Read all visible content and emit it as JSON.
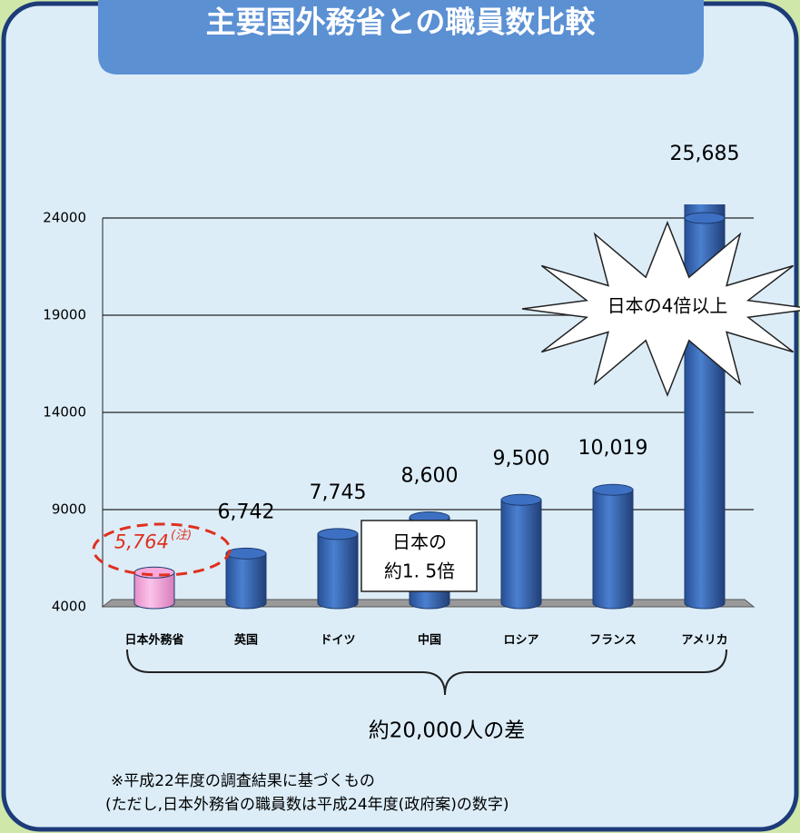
{
  "chart_data": {
    "type": "bar",
    "title": "主要国外務省との職員数比較",
    "categories": [
      "日本外務省",
      "英国",
      "ドイツ",
      "中国",
      "ロシア",
      "フランス",
      "アメリカ"
    ],
    "values": [
      5764,
      6742,
      7745,
      8600,
      9500,
      10019,
      25685
    ],
    "value_labels": [
      "5,764",
      "6,742",
      "7,745",
      "8,600",
      "9,500",
      "10,019",
      "25,685"
    ],
    "colors": [
      "#f7a8dc",
      "#3d70c2",
      "#3d70c2",
      "#3d70c2",
      "#3d70c2",
      "#3d70c2",
      "#3d70c2"
    ],
    "ylim": [
      4000,
      24000
    ],
    "yticks": [
      4000,
      9000,
      14000,
      19000,
      24000
    ],
    "grid": true,
    "note_mark": "(注)",
    "callout_us": "日本の4倍以上",
    "callout_japan": [
      "日本の",
      "約1. 5倍"
    ],
    "brace_label": "約20,000人の差",
    "footnotes": [
      "※平成22年度の調査結果に基づくもの",
      "(ただし,日本外務省の職員数は平成24年度(政府案)の数字)"
    ]
  }
}
